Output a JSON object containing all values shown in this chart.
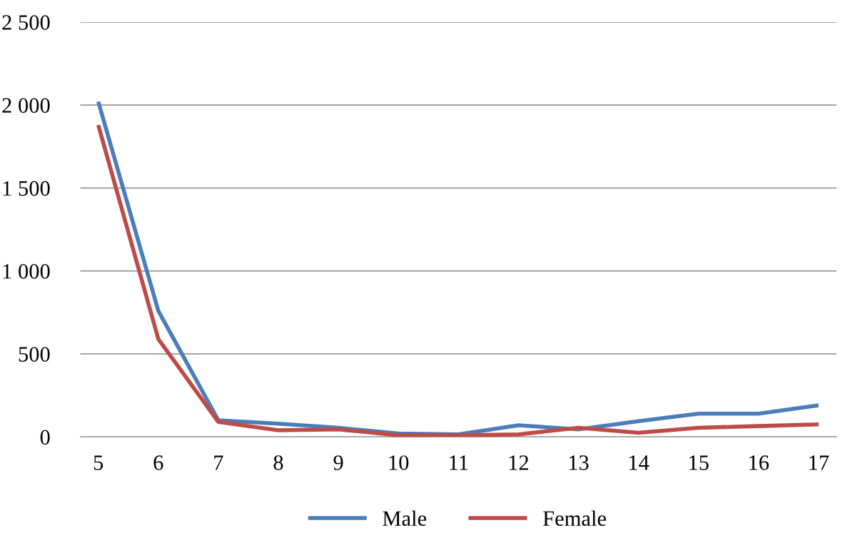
{
  "chart_data": {
    "type": "line",
    "categories": [
      "5",
      "6",
      "7",
      "8",
      "9",
      "10",
      "11",
      "12",
      "13",
      "14",
      "15",
      "16",
      "17"
    ],
    "series": [
      {
        "name": "Male",
        "color": "#4a7ebb",
        "values": [
          2020,
          760,
          100,
          80,
          55,
          20,
          15,
          70,
          45,
          95,
          140,
          140,
          190
        ]
      },
      {
        "name": "Female",
        "color": "#be4b48",
        "values": [
          1880,
          590,
          90,
          40,
          45,
          10,
          10,
          15,
          55,
          25,
          55,
          65,
          75
        ]
      }
    ],
    "ylim": [
      0,
      2500
    ],
    "yticks": [
      0,
      500,
      {
        "value": 1000,
        "label": "1 000"
      },
      {
        "value": 1500,
        "label": "1 500"
      },
      {
        "value": 2000,
        "label": "2 000"
      },
      {
        "value": 2500,
        "label": "2 500"
      }
    ],
    "grid": "y",
    "legend": "bottom",
    "marker": "none",
    "line_style": "solid"
  }
}
